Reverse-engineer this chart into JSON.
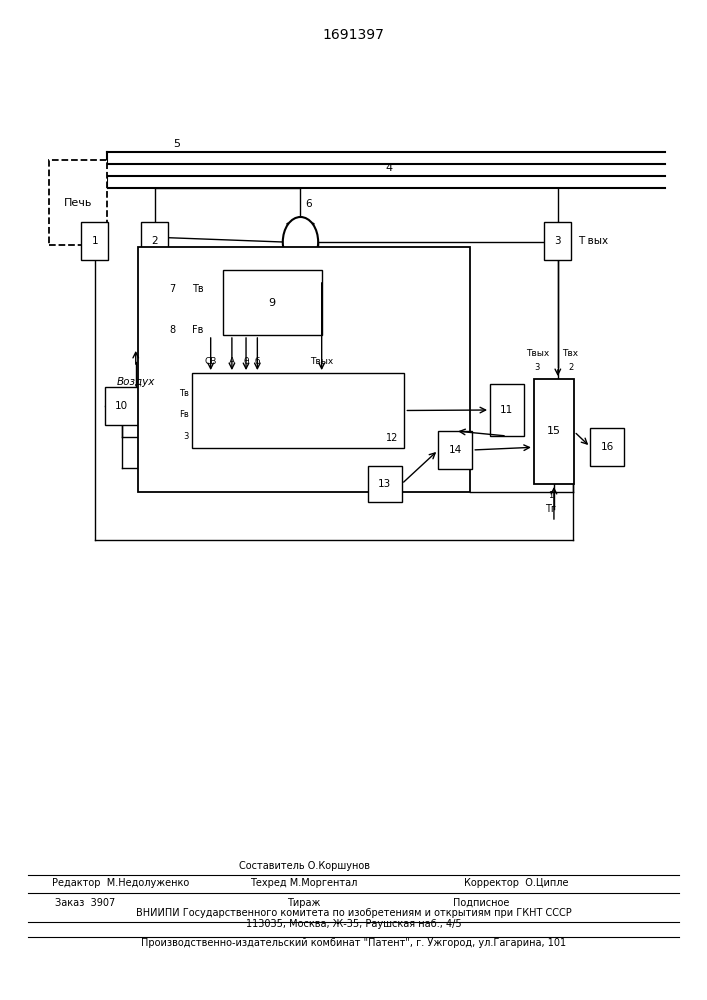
{
  "title": "1691397",
  "bg_color": "#ffffff",
  "line_color": "#000000",
  "footer": {
    "line1_left": "Редактор  М.Недолуженко",
    "line1_center": "Составитель О.Коршунов",
    "line1_right": "",
    "line2_left": "",
    "line2_center": "Техред М.Моргентал",
    "line2_right": "Корректор  О.Ципле",
    "line3_left": "Заказ  3907",
    "line3_center": "Тираж",
    "line3_right": "Подписное",
    "line4": "ВНИИПИ Государственного комитета по изобретениям и открытиям при ГКНТ СССР",
    "line5": "113035, Москва, Ж-35, Раушская наб., 4/5",
    "line6": "Производственно-издательский комбинат \"Патент\", г. Ужгород, ул.Гагарина, 101"
  }
}
